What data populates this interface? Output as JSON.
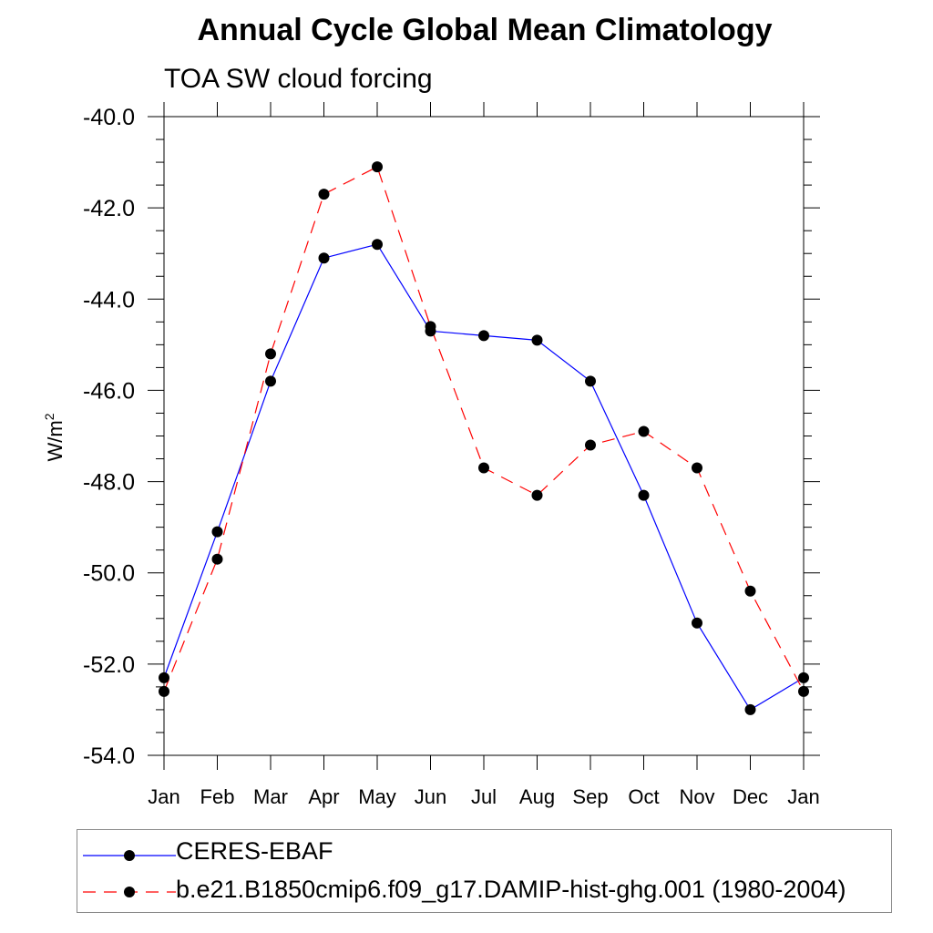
{
  "chart_data": {
    "type": "line",
    "title": "Annual Cycle Global Mean Climatology",
    "subtitle": "TOA SW cloud forcing",
    "ylabel": "W/m",
    "ylabel_sup": "2",
    "xlabel": "",
    "ylim": [
      -54.0,
      -40.0
    ],
    "yticks": [
      "-40.0",
      "-42.0",
      "-44.0",
      "-46.0",
      "-48.0",
      "-50.0",
      "-52.0",
      "-54.0"
    ],
    "categories": [
      "Jan",
      "Feb",
      "Mar",
      "Apr",
      "May",
      "Jun",
      "Jul",
      "Aug",
      "Sep",
      "Oct",
      "Nov",
      "Dec",
      "Jan"
    ],
    "grid": false,
    "legend_placement": "bottom",
    "series": [
      {
        "name": "CERES-EBAF",
        "color": "#0000ff",
        "style": "solid",
        "values": [
          -52.3,
          -49.1,
          -45.8,
          -43.1,
          -42.8,
          -44.7,
          -44.8,
          -44.9,
          -45.8,
          -48.3,
          -51.1,
          -53.0,
          -52.3
        ]
      },
      {
        "name": "b.e21.B1850cmip6.f09_g17.DAMIP-hist-ghg.001 (1980-2004)",
        "color": "#ff0000",
        "style": "dashed",
        "values": [
          -52.6,
          -49.7,
          -45.2,
          -41.7,
          -41.1,
          -44.6,
          -47.7,
          -48.3,
          -47.2,
          -46.9,
          -47.7,
          -50.4,
          -52.6
        ]
      }
    ]
  }
}
